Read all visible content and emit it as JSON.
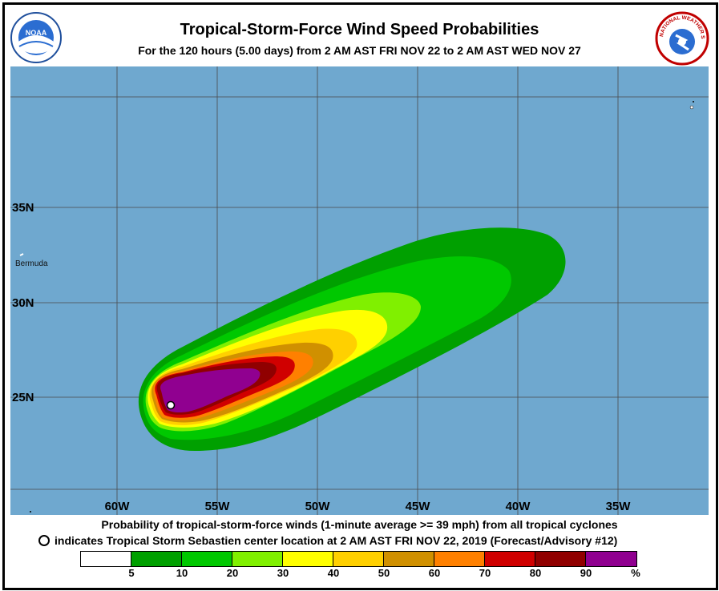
{
  "header": {
    "title": "Tropical-Storm-Force Wind Speed Probabilities",
    "subtitle": "For the 120 hours (5.00 days) from 2 AM AST FRI NOV 22 to 2 AM AST WED NOV 27"
  },
  "logos": {
    "left": "noaa-logo",
    "right": "national-weather-service-logo",
    "left_text": "NOAA",
    "right_text": "NATIONAL WEATHER SERVICE"
  },
  "map": {
    "ocean_color": "#6fa8cf",
    "land_color": "#ffffff",
    "lon_labels": [
      "60W",
      "55W",
      "50W",
      "45W",
      "40W",
      "35W"
    ],
    "lat_labels": [
      "35N",
      "30N",
      "25N"
    ],
    "places": [
      {
        "name": "Bermuda"
      }
    ],
    "storm_center": {
      "name": "Tropical Storm Sebastien",
      "lon": -57.3,
      "lat": 24.6
    }
  },
  "legend": {
    "line1": "Probability of tropical-storm-force winds (1-minute average >= 39 mph) from all tropical cyclones",
    "line2": "indicates Tropical Storm Sebastien center location at 2 AM AST FRI NOV 22, 2019 (Forecast/Advisory #12)",
    "unit": "%",
    "bins": [
      {
        "label": "5",
        "color": "#ffffff"
      },
      {
        "label": "10",
        "color": "#00a000"
      },
      {
        "label": "20",
        "color": "#00c800"
      },
      {
        "label": "30",
        "color": "#80f000"
      },
      {
        "label": "40",
        "color": "#ffff00"
      },
      {
        "label": "50",
        "color": "#ffd000"
      },
      {
        "label": "60",
        "color": "#d09000"
      },
      {
        "label": "70",
        "color": "#ff8000"
      },
      {
        "label": "80",
        "color": "#d00000"
      },
      {
        "label": "90",
        "color": "#900000"
      },
      {
        "label": "",
        "color": "#900090"
      }
    ]
  }
}
